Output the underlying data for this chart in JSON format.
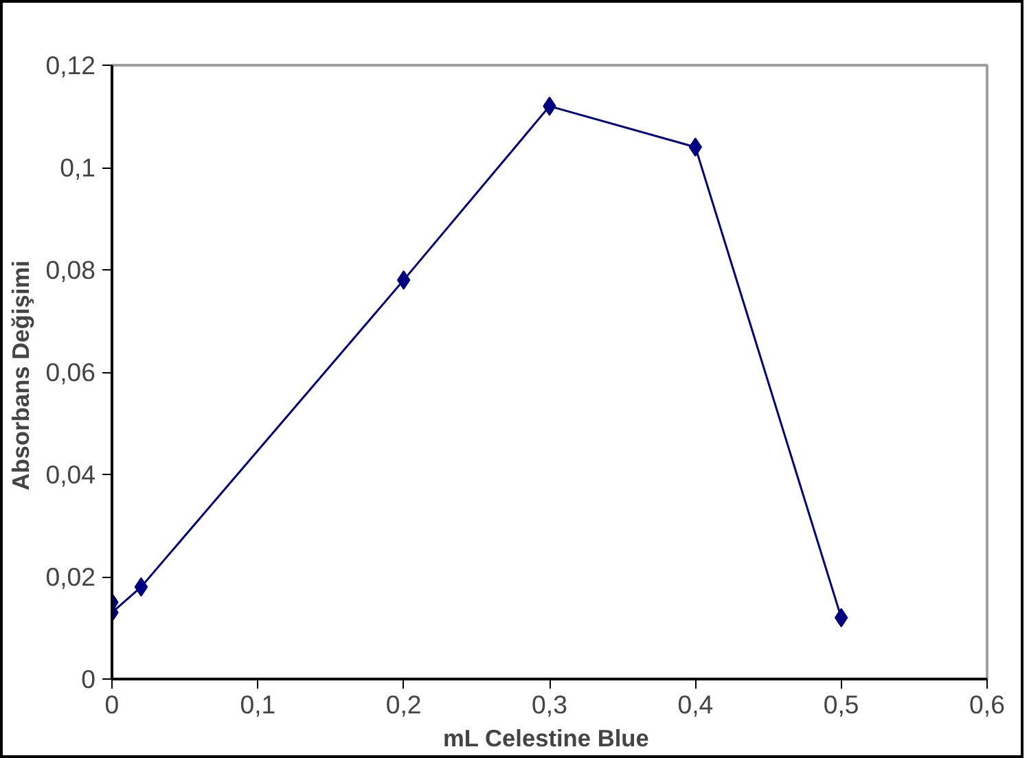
{
  "chart_data": {
    "type": "line",
    "xlabel": "mL  Celestine Blue",
    "ylabel": "Absorbans  Değişimi",
    "x": [
      0,
      0,
      0.02,
      0.2,
      0.3,
      0.4,
      0.5
    ],
    "series": [
      {
        "color": "#000080",
        "values": [
          0.015,
          0.013,
          0.018,
          0.078,
          0.112,
          0.104,
          0.012
        ]
      }
    ],
    "marker": "diamond",
    "line_style": "solid",
    "grid": false,
    "xlim": [
      0,
      0.6
    ],
    "ylim": [
      0,
      0.12
    ],
    "xticks": [
      0,
      {
        "value": 0.1,
        "label": "0,1"
      },
      {
        "value": 0.2,
        "label": "0,2"
      },
      {
        "value": 0.3,
        "label": "0,3"
      },
      {
        "value": 0.4,
        "label": "0,4"
      },
      {
        "value": 0.5,
        "label": "0,5"
      },
      {
        "value": 0.6,
        "label": "0,6"
      }
    ],
    "yticks": [
      0,
      {
        "value": 0.02,
        "label": "0,02"
      },
      {
        "value": 0.04,
        "label": "0,04"
      },
      {
        "value": 0.06,
        "label": "0,06"
      },
      {
        "value": 0.08,
        "label": "0,08"
      },
      {
        "value": 0.1,
        "label": "0,1"
      },
      {
        "value": 0.12,
        "label": "0,12"
      }
    ]
  }
}
